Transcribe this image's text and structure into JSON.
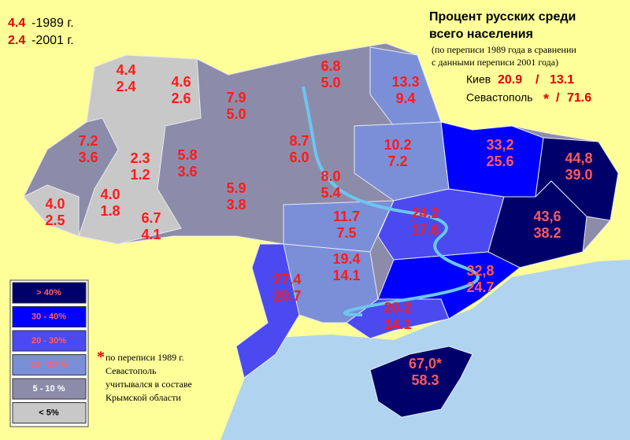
{
  "key": {
    "y1989_value": "4.4",
    "y1989_label": "-1989 г.",
    "y2001_value": "2.4",
    "y2001_label": "-2001 г."
  },
  "title": {
    "line1": "Процент русских среди",
    "line2": "всего населения",
    "sub1": "(по переписи 1989 года в сравнении",
    "sub2": "с данными переписи 2001 года)"
  },
  "kiev": {
    "name": "Киев",
    "v1989": "20.9",
    "sep": "/",
    "v2001": "13.1"
  },
  "sevastopol": {
    "name": "Севастополь",
    "v1989": "*",
    "sep": "/",
    "v2001": "71.6"
  },
  "regions": [
    {
      "v1989": "4.4",
      "v2001": "2.4"
    },
    {
      "v1989": "4.6",
      "v2001": "2.6"
    },
    {
      "v1989": "7.9",
      "v2001": "5.0"
    },
    {
      "v1989": "6.8",
      "v2001": "5.0"
    },
    {
      "v1989": "13.3",
      "v2001": "9.4"
    },
    {
      "v1989": "7.2",
      "v2001": "3.6"
    },
    {
      "v1989": "2.3",
      "v2001": "1.2"
    },
    {
      "v1989": "5.8",
      "v2001": "3.6"
    },
    {
      "v1989": "8.7",
      "v2001": "6.0"
    },
    {
      "v1989": "10.2",
      "v2001": "7.2"
    },
    {
      "v1989": "33,2",
      "v2001": "25.6"
    },
    {
      "v1989": "44,8",
      "v2001": "39.0"
    },
    {
      "v1989": "4.0",
      "v2001": "2.5"
    },
    {
      "v1989": "4.0",
      "v2001": "1.8"
    },
    {
      "v1989": "6.7",
      "v2001": "4.1"
    },
    {
      "v1989": "5.9",
      "v2001": "3.8"
    },
    {
      "v1989": "8.0",
      "v2001": "5.4"
    },
    {
      "v1989": "11.7",
      "v2001": "7.5"
    },
    {
      "v1989": "24.2",
      "v2001": "17.6"
    },
    {
      "v1989": "43,6",
      "v2001": "38.2"
    },
    {
      "v1989": "27.4",
      "v2001": "20.7"
    },
    {
      "v1989": "19.4",
      "v2001": "14.1"
    },
    {
      "v1989": "32,8",
      "v2001": "24.7"
    },
    {
      "v1989": "20.2",
      "v2001": "14.1"
    },
    {
      "v1989": "67,0*",
      "v2001": "58.3"
    }
  ],
  "legend": [
    "> 40%",
    "30 - 40%",
    "20 - 30%",
    "10 - 20 %",
    "5 - 10 %",
    "< 5%"
  ],
  "footnote": {
    "mark": "*",
    "line1": "по переписи 1989 г.",
    "line2": "Севастополь",
    "line3": "учитывался в составе",
    "line4": "Крымской области"
  }
}
